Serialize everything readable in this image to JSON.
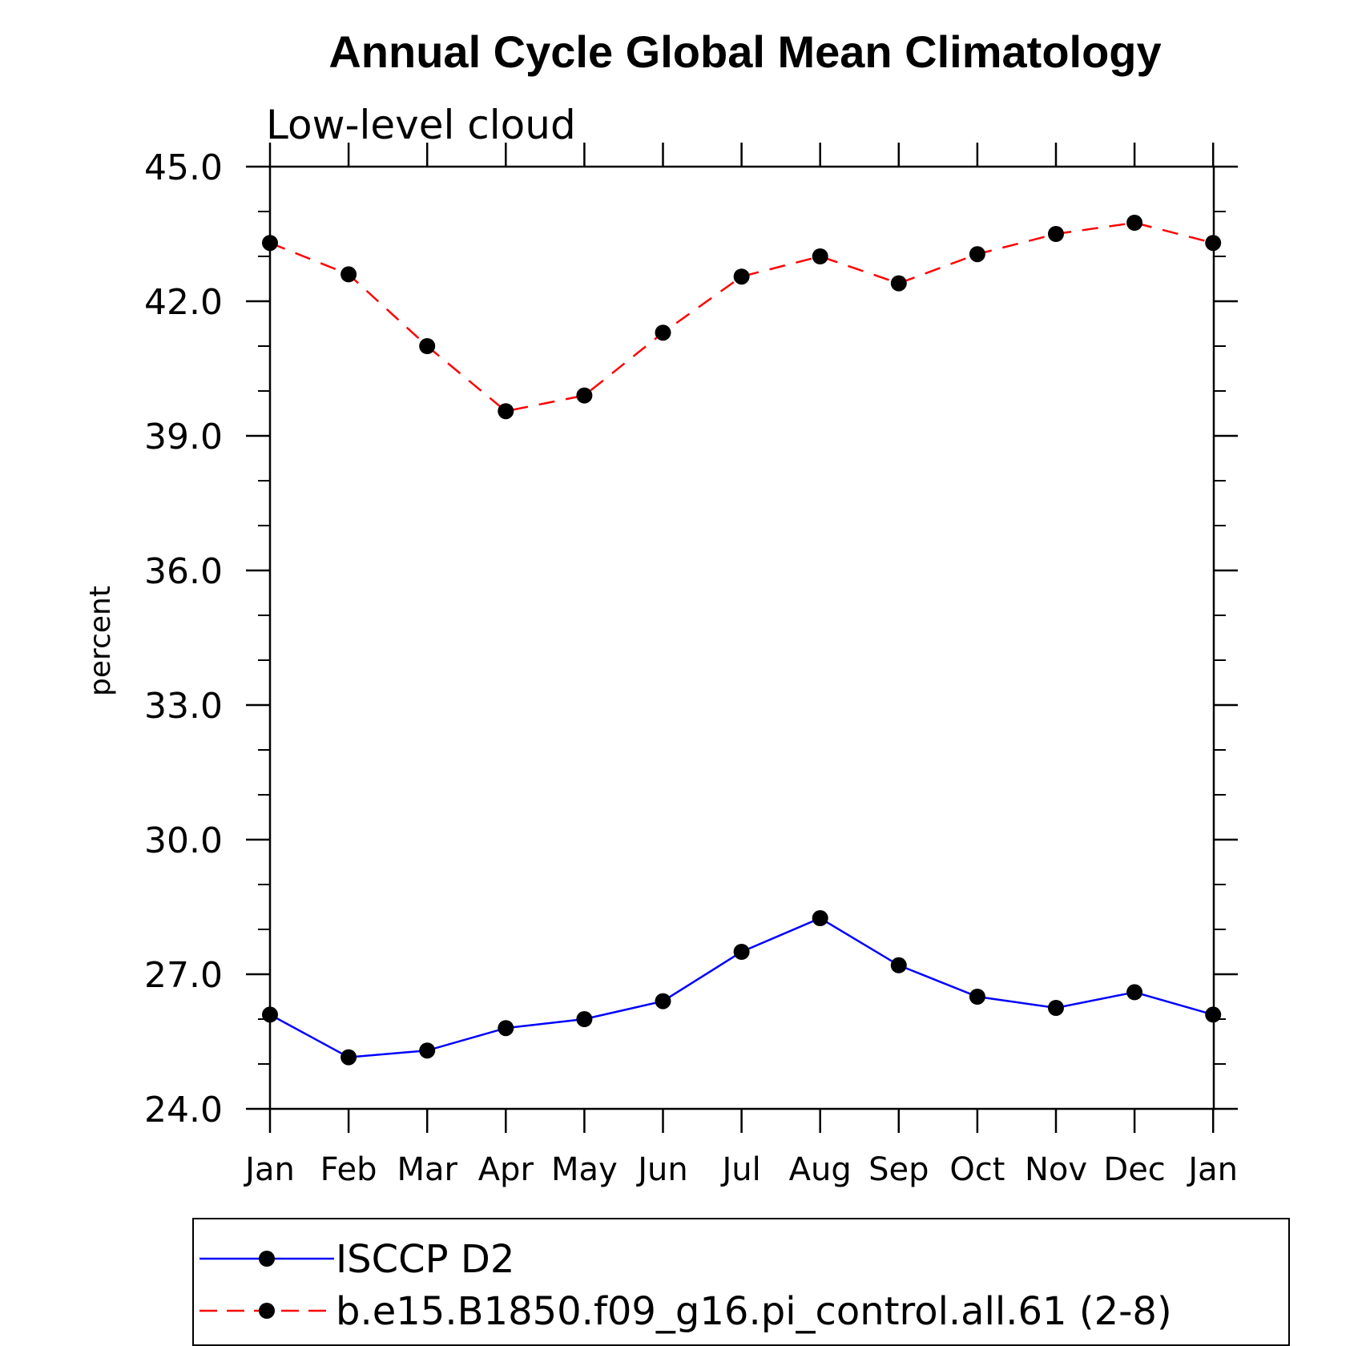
{
  "chart_data": {
    "type": "line",
    "title": "Annual Cycle Global Mean Climatology",
    "subtitle": "Low-level cloud",
    "ylabel": "percent",
    "xlabel": "",
    "categories": [
      "Jan",
      "Feb",
      "Mar",
      "Apr",
      "May",
      "Jun",
      "Jul",
      "Aug",
      "Sep",
      "Oct",
      "Nov",
      "Dec",
      "Jan"
    ],
    "ylim": [
      24.0,
      45.0
    ],
    "yticks": [
      "24.0",
      "27.0",
      "30.0",
      "33.0",
      "36.0",
      "39.0",
      "42.0",
      "45.0"
    ],
    "ytick_values": [
      24,
      27,
      30,
      33,
      36,
      39,
      42,
      45
    ],
    "grid": false,
    "legend_position": "bottom",
    "series": [
      {
        "name": "ISCCP D2",
        "color": "#0000ff",
        "dash": "solid",
        "marker": "filled-circle",
        "values": [
          26.1,
          25.15,
          25.3,
          25.8,
          26.0,
          26.4,
          27.5,
          28.25,
          27.2,
          26.5,
          26.25,
          26.6,
          26.1
        ]
      },
      {
        "name": "b.e15.B1850.f09_g16.pi_control.all.61 (2-8)",
        "color": "#ff0000",
        "dash": "dashed",
        "marker": "filled-circle",
        "values": [
          43.3,
          42.6,
          41.0,
          39.55,
          39.9,
          41.3,
          42.55,
          43.0,
          42.4,
          43.05,
          43.5,
          43.75,
          43.3
        ]
      }
    ]
  }
}
